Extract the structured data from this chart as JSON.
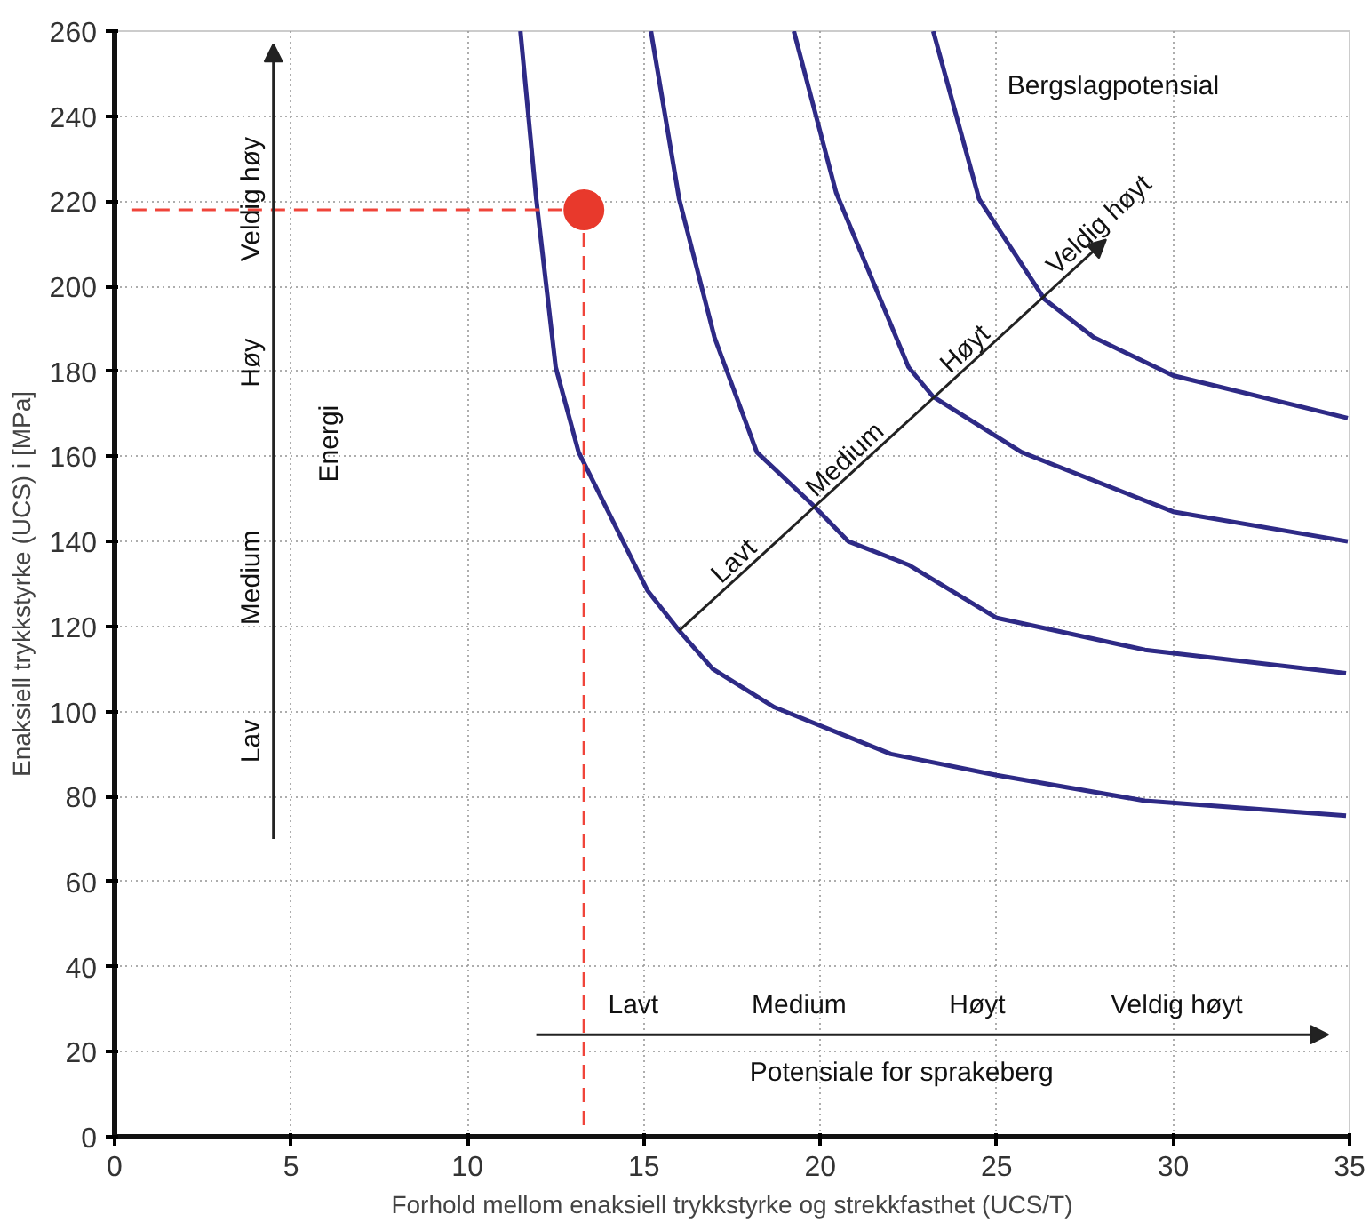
{
  "chart_data": {
    "type": "line",
    "xlabel": "Forhold mellom enaksiell trykkstyrke og strekkfasthet (UCS/T)",
    "ylabel": "Enaksiell trykkstyrke (UCS) i [MPa]",
    "xlim": [
      0,
      35
    ],
    "ylim": [
      0,
      260
    ],
    "xticks": [
      0,
      5,
      10,
      15,
      20,
      25,
      30,
      35
    ],
    "yticks": [
      0,
      20,
      40,
      60,
      80,
      100,
      120,
      140,
      160,
      180,
      200,
      220,
      240,
      260
    ],
    "grid": true,
    "line_style": "solid",
    "series": [
      {
        "color": "#2e2a86",
        "x": [
          11.5,
          11.95,
          12.5,
          13.15,
          15.1,
          16.0,
          16.95,
          18.7,
          22.0,
          25.0,
          29.2,
          34.9
        ],
        "values": [
          260,
          220.5,
          181,
          161,
          128.5,
          119,
          110,
          101,
          90,
          85,
          79,
          75.5
        ]
      },
      {
        "color": "#2e2a86",
        "x": [
          15.2,
          16.0,
          17.0,
          18.2,
          19.8,
          20.8,
          22.5,
          25.0,
          29.2,
          34.9
        ],
        "values": [
          260,
          220.5,
          188,
          161,
          148.5,
          140,
          134.5,
          122,
          114.5,
          109
        ]
      },
      {
        "color": "#2e2a86",
        "x": [
          19.25,
          20.45,
          22.5,
          23.2,
          25.7,
          30.0,
          34.95
        ],
        "values": [
          260,
          222,
          181,
          174,
          161,
          147,
          140
        ]
      },
      {
        "color": "#2e2a86",
        "x": [
          23.2,
          24.5,
          26.35,
          27.75,
          30.0,
          34.95
        ],
        "values": [
          260,
          220.5,
          197,
          188,
          179,
          169
        ]
      },
      {
        "type": "line",
        "color": "#f0443a",
        "line_style": "dashed",
        "x": [
          0.5,
          13.3
        ],
        "values": [
          218,
          218
        ]
      },
      {
        "type": "line",
        "color": "#f0443a",
        "line_style": "dashed",
        "x": [
          13.3,
          13.3
        ],
        "values": [
          218,
          0
        ]
      },
      {
        "type": "scatter",
        "marker": "circle",
        "color": "#e8392c",
        "x": [
          13.3
        ],
        "values": [
          218
        ]
      }
    ],
    "annotations": [
      "Bergslagpotensial",
      "Lavt",
      "Medium",
      "Høyt",
      "Veldig høyt",
      "Lav",
      "Medium",
      "Høy",
      "Veldig høy",
      "Energi",
      "Lavt",
      "Medium",
      "Høyt",
      "Veldig høyt",
      "Potensiale for sprakeberg"
    ]
  }
}
